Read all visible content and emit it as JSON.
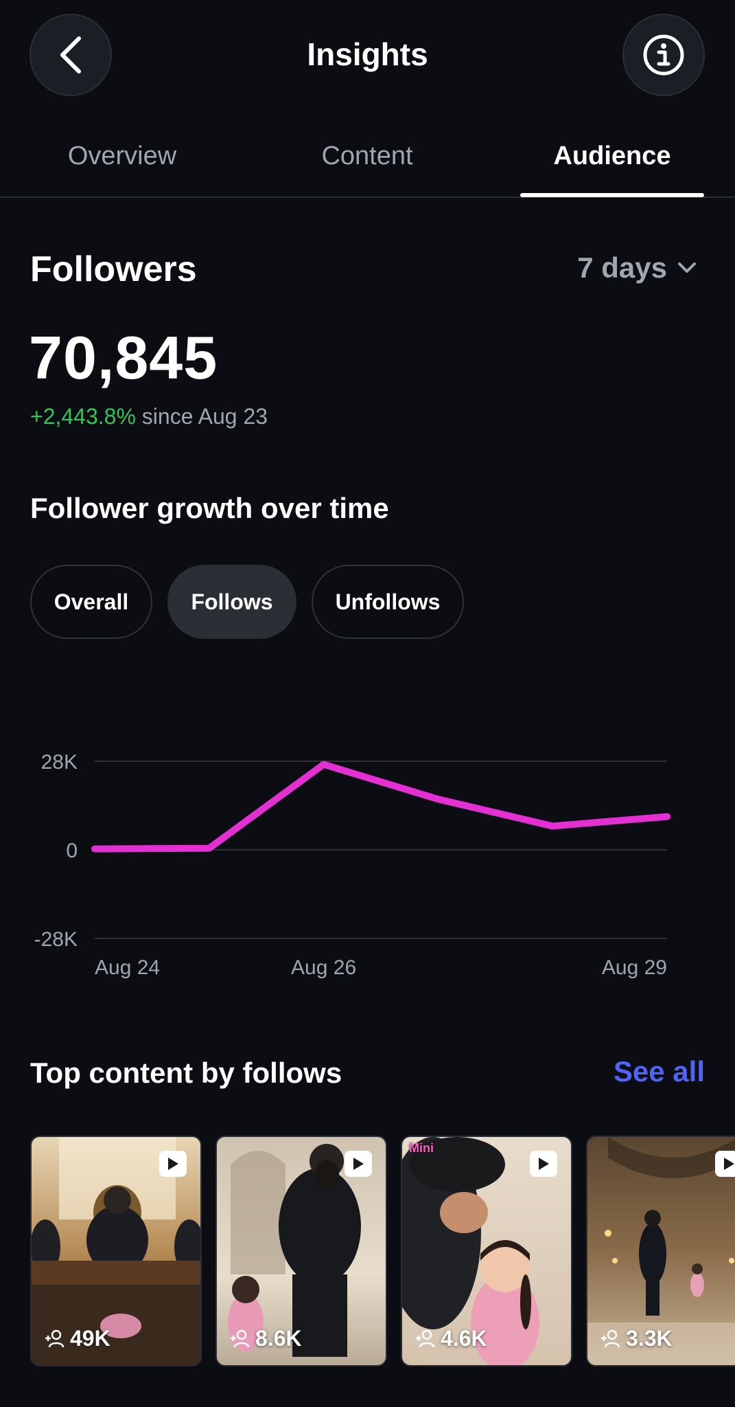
{
  "header": {
    "title": "Insights",
    "back_icon": "chevron-left-icon",
    "info_icon": "info-icon"
  },
  "tabs": [
    {
      "label": "Overview",
      "active": false
    },
    {
      "label": "Content",
      "active": false
    },
    {
      "label": "Audience",
      "active": true
    }
  ],
  "followers": {
    "title": "Followers",
    "range_label": "7 days",
    "count": "70,845",
    "change": "+2,443.8%",
    "change_suffix": "since Aug 23"
  },
  "growth": {
    "title": "Follower growth over time",
    "filters": [
      {
        "label": "Overall",
        "selected": false
      },
      {
        "label": "Follows",
        "selected": true
      },
      {
        "label": "Unfollows",
        "selected": false
      }
    ]
  },
  "chart_data": {
    "type": "line",
    "x": [
      "Aug 24",
      "Aug 25",
      "Aug 26",
      "Aug 27",
      "Aug 28",
      "Aug 29"
    ],
    "xtick_labels": [
      "Aug 24",
      "Aug 26",
      "Aug 29"
    ],
    "series": [
      {
        "values": [
          300,
          500,
          27000,
          16000,
          7500,
          10500
        ],
        "color": "#e42fd3"
      }
    ],
    "ylim": [
      -28000,
      28000
    ],
    "ytick_labels": [
      "28K",
      "0",
      "-28K"
    ],
    "yticks": [
      28000,
      0,
      -28000
    ],
    "grid": true
  },
  "top_content": {
    "title": "Top content by follows",
    "see_all": "See all",
    "items": [
      {
        "follows": "49K"
      },
      {
        "follows": "8.6K"
      },
      {
        "follows": "4.6K",
        "badge": "Mini"
      },
      {
        "follows": "3.3K"
      }
    ]
  }
}
